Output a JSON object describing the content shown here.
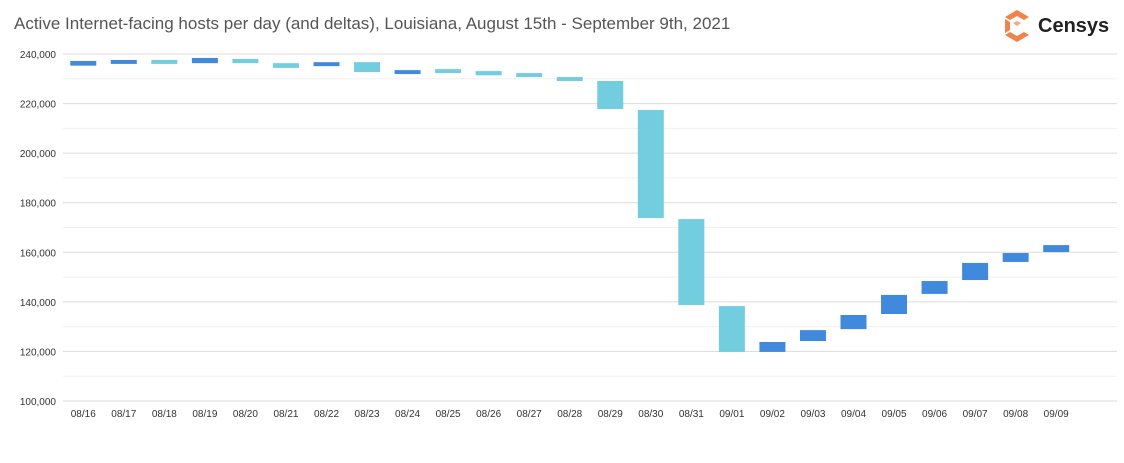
{
  "chart_data": {
    "type": "waterfall",
    "title": "Active Internet-facing hosts per day (and deltas), Louisiana, August 15th - September 9th, 2021",
    "xlabel": "",
    "ylabel": "",
    "ylim": [
      100000,
      240000
    ],
    "yticks": [
      "100,000",
      "120,000",
      "140,000",
      "160,000",
      "180,000",
      "200,000",
      "220,000",
      "240,000"
    ],
    "grid": true,
    "colors": {
      "increase": "#4189DC",
      "decrease": "#72CDDF"
    },
    "categories": [
      "08/16",
      "08/17",
      "08/18",
      "08/19",
      "08/20",
      "08/21",
      "08/22",
      "08/23",
      "08/24",
      "08/25",
      "08/26",
      "08/27",
      "08/28",
      "08/29",
      "08/30",
      "08/31",
      "09/01",
      "09/02",
      "09/03",
      "09/04",
      "09/05",
      "09/06",
      "09/07",
      "09/08",
      "09/09"
    ],
    "bars": [
      {
        "low": 235300,
        "high": 237200,
        "kind": "increase"
      },
      {
        "low": 236000,
        "high": 237600,
        "kind": "increase"
      },
      {
        "low": 236000,
        "high": 237600,
        "kind": "decrease"
      },
      {
        "low": 236300,
        "high": 238400,
        "kind": "increase"
      },
      {
        "low": 236300,
        "high": 238000,
        "kind": "decrease"
      },
      {
        "low": 234400,
        "high": 236300,
        "kind": "decrease"
      },
      {
        "low": 235100,
        "high": 236700,
        "kind": "increase"
      },
      {
        "low": 232700,
        "high": 236700,
        "kind": "decrease"
      },
      {
        "low": 231900,
        "high": 233500,
        "kind": "increase"
      },
      {
        "low": 232300,
        "high": 233900,
        "kind": "decrease"
      },
      {
        "low": 231400,
        "high": 233100,
        "kind": "decrease"
      },
      {
        "low": 230700,
        "high": 232300,
        "kind": "decrease"
      },
      {
        "low": 229100,
        "high": 230700,
        "kind": "decrease"
      },
      {
        "low": 217800,
        "high": 229100,
        "kind": "decrease"
      },
      {
        "low": 173800,
        "high": 217400,
        "kind": "decrease"
      },
      {
        "low": 138700,
        "high": 173400,
        "kind": "decrease"
      },
      {
        "low": 119800,
        "high": 138300,
        "kind": "decrease"
      },
      {
        "low": 119800,
        "high": 123800,
        "kind": "increase"
      },
      {
        "low": 124200,
        "high": 128600,
        "kind": "increase"
      },
      {
        "low": 129000,
        "high": 134700,
        "kind": "increase"
      },
      {
        "low": 135100,
        "high": 142800,
        "kind": "increase"
      },
      {
        "low": 143200,
        "high": 148400,
        "kind": "increase"
      },
      {
        "low": 148800,
        "high": 155700,
        "kind": "increase"
      },
      {
        "low": 156100,
        "high": 159700,
        "kind": "increase"
      },
      {
        "low": 160100,
        "high": 162900,
        "kind": "increase"
      }
    ]
  },
  "logo": {
    "text": "Censys",
    "color": "#F0824A"
  }
}
